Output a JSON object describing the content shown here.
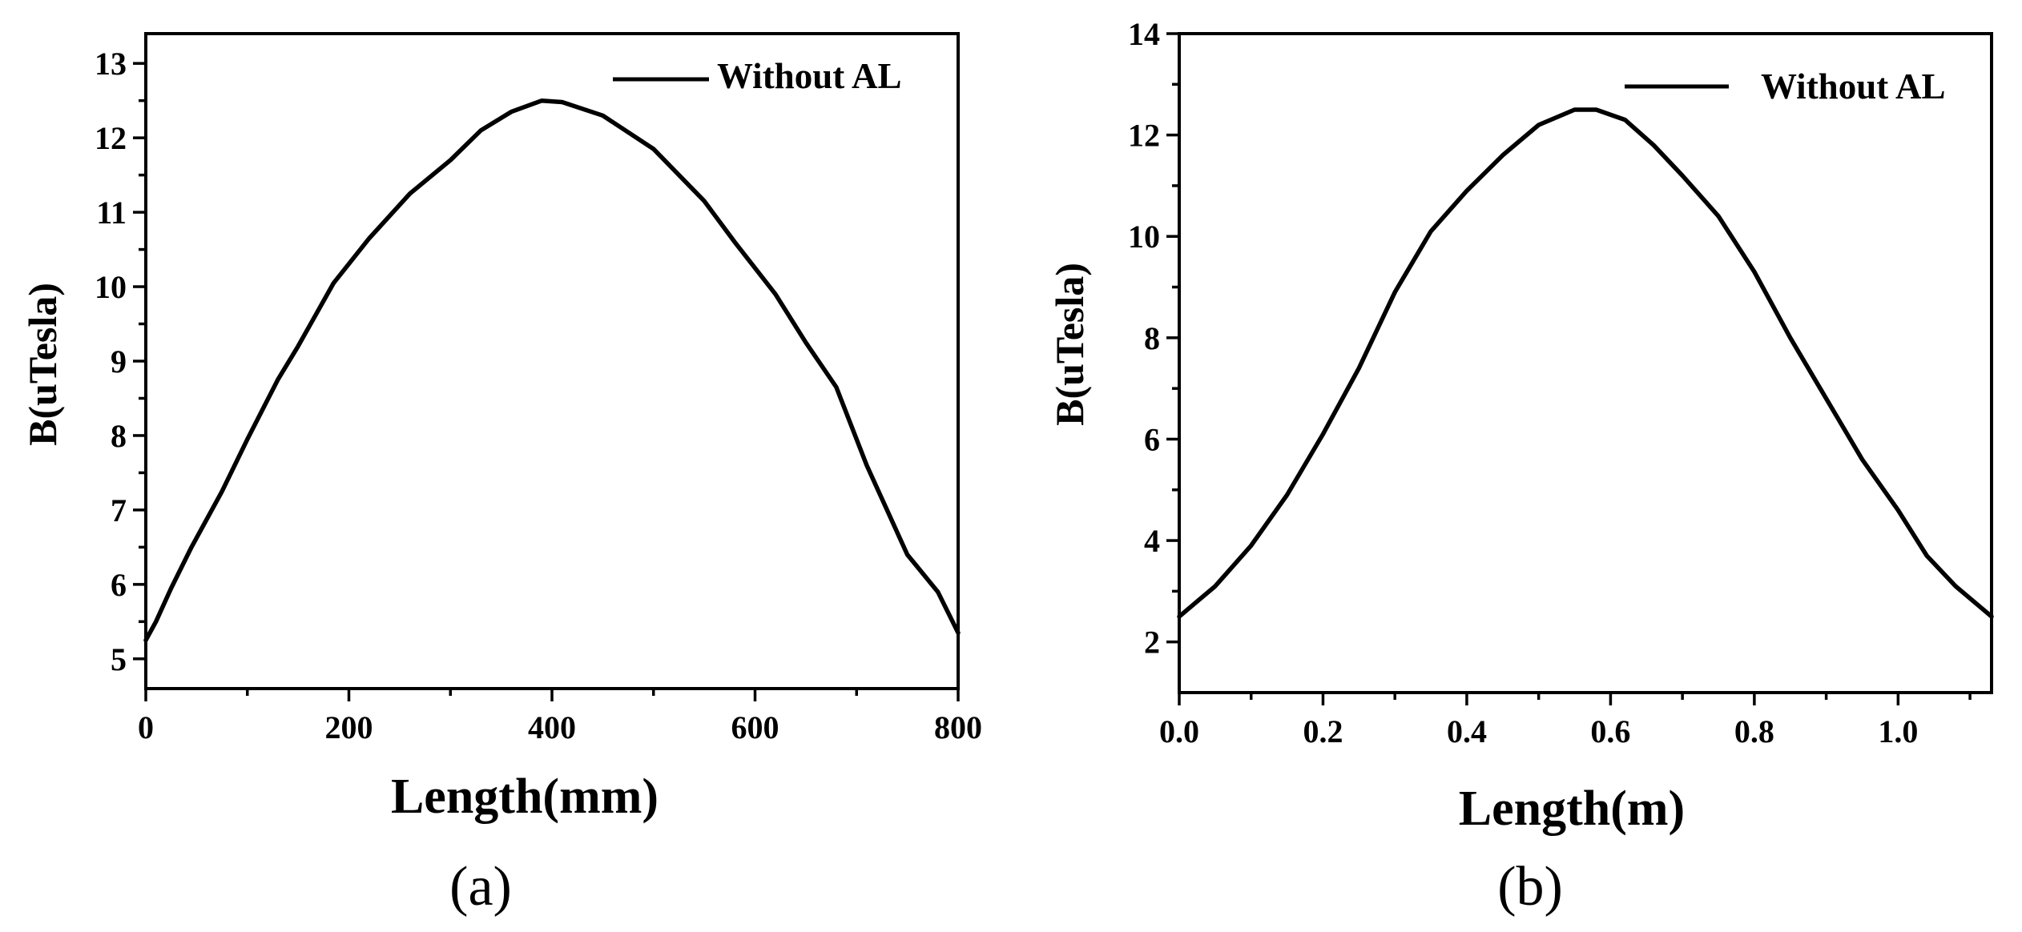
{
  "chart_data": [
    {
      "type": "line",
      "panel_label": "(a)",
      "title": "",
      "xlabel": "Length(mm)",
      "ylabel": "B(uTesla)",
      "xlim": [
        0,
        800
      ],
      "ylim": [
        4.6,
        13.4
      ],
      "xticks": [
        0,
        200,
        400,
        600,
        800
      ],
      "xticklabels": [
        "0",
        "200",
        "400",
        "600",
        "800"
      ],
      "yticks": [
        5,
        6,
        7,
        8,
        9,
        10,
        11,
        12,
        13
      ],
      "yticklabels": [
        "5",
        "6",
        "7",
        "8",
        "9",
        "10",
        "11",
        "12",
        "13"
      ],
      "legend": {
        "label": "Without AL",
        "position": "top-right"
      },
      "series": [
        {
          "name": "Without AL",
          "x": [
            0,
            10,
            25,
            45,
            75,
            100,
            130,
            150,
            185,
            220,
            260,
            300,
            330,
            360,
            380,
            390,
            410,
            450,
            500,
            550,
            580,
            620,
            650,
            680,
            710,
            750,
            780,
            800
          ],
          "y": [
            5.25,
            5.5,
            5.95,
            6.5,
            7.25,
            7.95,
            8.75,
            9.2,
            10.05,
            10.65,
            11.25,
            11.7,
            12.1,
            12.35,
            12.45,
            12.5,
            12.48,
            12.3,
            11.85,
            11.15,
            10.6,
            9.9,
            9.25,
            8.65,
            7.6,
            6.4,
            5.9,
            5.35
          ]
        }
      ]
    },
    {
      "type": "line",
      "panel_label": "(b)",
      "title": "",
      "xlabel": "Length(m)",
      "ylabel": "B(uTesla)",
      "xlim": [
        0,
        1.13
      ],
      "ylim": [
        1,
        14
      ],
      "xticks": [
        0,
        0.2,
        0.4,
        0.6,
        0.8,
        1.0
      ],
      "xticklabels": [
        "0.0",
        "0.2",
        "0.4",
        "0.6",
        "0.8",
        "1.0"
      ],
      "yticks": [
        2,
        4,
        6,
        8,
        10,
        12,
        14
      ],
      "yticklabels": [
        "2",
        "4",
        "6",
        "8",
        "10",
        "12",
        "14"
      ],
      "legend": {
        "label": "Without AL",
        "position": "top-right"
      },
      "series": [
        {
          "name": "Without AL",
          "x": [
            0,
            0.05,
            0.1,
            0.15,
            0.2,
            0.25,
            0.3,
            0.35,
            0.4,
            0.45,
            0.5,
            0.55,
            0.58,
            0.62,
            0.66,
            0.7,
            0.75,
            0.8,
            0.85,
            0.9,
            0.95,
            1.0,
            1.04,
            1.08,
            1.13
          ],
          "y": [
            2.5,
            3.1,
            3.9,
            4.9,
            6.1,
            7.4,
            8.9,
            10.1,
            10.9,
            11.6,
            12.2,
            12.5,
            12.5,
            12.3,
            11.8,
            11.2,
            10.4,
            9.3,
            8.0,
            6.8,
            5.6,
            4.6,
            3.7,
            3.1,
            2.5
          ]
        }
      ]
    }
  ]
}
